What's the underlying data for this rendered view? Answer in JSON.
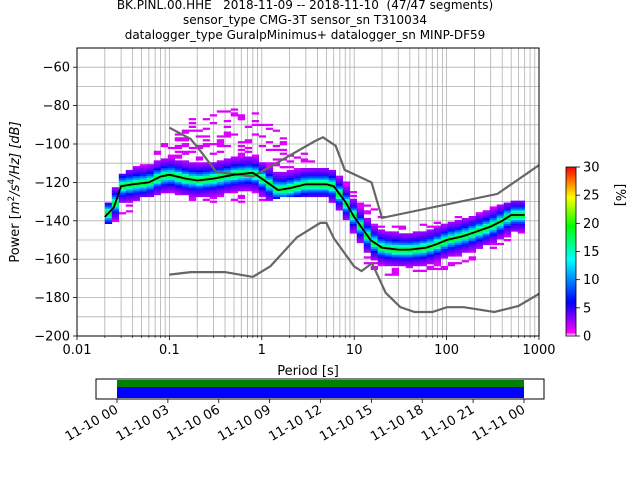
{
  "title": {
    "line1": "BK.PINL.00.HHE   2018-11-09 -- 2018-11-10  (47/47 segments)",
    "line2": "sensor_type CMG-3T sensor_sn T310034",
    "line3": "datalogger_type GuralpMinimus+ datalogger_sn MINP-DF59"
  },
  "chart_data": {
    "type": "heatmap",
    "xlabel": "Period [s]",
    "ylabel": "Power [m²/s⁴/Hz] [dB]",
    "ylabel_prefix": "Power [",
    "ylabel_unit_a": "m",
    "ylabel_sup1": "2",
    "ylabel_unit_b": "/s",
    "ylabel_sup2": "4",
    "ylabel_unit_c": "/Hz] [dB]",
    "x_scale": "log",
    "xlim": [
      0.01,
      1000
    ],
    "x_ticks": [
      {
        "value": 0.01,
        "label": "0.01"
      },
      {
        "value": 0.1,
        "label": "0.1"
      },
      {
        "value": 1,
        "label": "1"
      },
      {
        "value": 10,
        "label": "10"
      },
      {
        "value": 100,
        "label": "100"
      },
      {
        "value": 1000,
        "label": "1000"
      }
    ],
    "ylim": [
      -200,
      -50
    ],
    "y_ticks": [
      {
        "value": -60,
        "label": "−60"
      },
      {
        "value": -80,
        "label": "−80"
      },
      {
        "value": -100,
        "label": "−100"
      },
      {
        "value": -120,
        "label": "−120"
      },
      {
        "value": -140,
        "label": "−140"
      },
      {
        "value": -160,
        "label": "−160"
      },
      {
        "value": -180,
        "label": "−180"
      },
      {
        "value": -200,
        "label": "−200"
      }
    ],
    "grid": true,
    "colorbar": {
      "label": "[%]",
      "range": [
        0,
        30
      ],
      "ticks": [
        {
          "value": 0,
          "label": "0"
        },
        {
          "value": 5,
          "label": "5"
        },
        {
          "value": 10,
          "label": "10"
        },
        {
          "value": 15,
          "label": "15"
        },
        {
          "value": 20,
          "label": "20"
        },
        {
          "value": 25,
          "label": "25"
        },
        {
          "value": 30,
          "label": "30"
        }
      ],
      "colors": [
        "#ffffff",
        "#ff00ff",
        "#0000ff",
        "#00ffff",
        "#00ff00",
        "#ffff00",
        "#ff0000"
      ]
    },
    "nhnm": {
      "x": [
        0.1,
        0.17,
        0.22,
        0.32,
        0.8,
        3.8,
        4.6,
        6.3,
        7.9,
        15.4,
        20,
        354.8,
        1000
      ],
      "y": [
        -91.5,
        -97.4,
        -104,
        -114.5,
        -117,
        -98.4,
        -96.5,
        -101,
        -113.5,
        -120,
        -138.5,
        -126,
        -111
      ]
    },
    "nlnm": {
      "x": [
        0.1,
        0.17,
        0.4,
        0.8,
        1.24,
        2.4,
        4.3,
        5,
        6,
        10,
        12,
        15.6,
        21.9,
        31.6,
        45,
        70,
        101,
        154,
        328,
        600,
        1000
      ],
      "y": [
        -168,
        -166.7,
        -166.7,
        -169.2,
        -163.7,
        -148.6,
        -141.1,
        -141.1,
        -149,
        -163.8,
        -166.2,
        -162.1,
        -177.5,
        -185,
        -187.5,
        -187.5,
        -185,
        -185,
        -187.5,
        -184.4,
        -178
      ]
    },
    "mode": {
      "x": [
        0.02,
        0.025,
        0.03,
        0.04,
        0.06,
        0.08,
        0.1,
        0.15,
        0.2,
        0.3,
        0.5,
        0.8,
        1,
        1.5,
        2,
        3,
        4,
        5,
        6,
        8,
        10,
        15,
        20,
        30,
        40,
        60,
        80,
        100,
        150,
        200,
        300,
        400,
        500,
        700
      ],
      "y": [
        -138,
        -133,
        -122,
        -121,
        -120,
        -117,
        -116,
        -118,
        -119,
        -118,
        -116,
        -115,
        -118,
        -124,
        -123,
        -121,
        -121,
        -121,
        -122,
        -130,
        -138,
        -150,
        -154,
        -155,
        -155,
        -154,
        -152,
        -150,
        -148,
        -146,
        -143,
        -140,
        -137,
        -137
      ]
    },
    "density_shape": {
      "x": [
        0.02,
        0.03,
        0.05,
        0.1,
        0.2,
        0.5,
        1,
        2,
        5,
        8,
        10,
        15,
        20,
        30,
        50,
        100,
        200,
        500,
        700
      ],
      "y_lo": [
        -142,
        -140,
        -128,
        -125,
        -130,
        -132,
        -131,
        -127,
        -127,
        -138,
        -152,
        -165,
        -168,
        -168,
        -168,
        -165,
        -160,
        -150,
        -148
      ],
      "y_hi": [
        -134,
        -116,
        -110,
        -95,
        -85,
        -79,
        -85,
        -100,
        -112,
        -118,
        -125,
        -132,
        -137,
        -142,
        -142,
        -140,
        -135,
        -130,
        -130
      ]
    },
    "time_axis": {
      "label_ticks": [
        "11-10 00",
        "11-10 03",
        "11-10 06",
        "11-10 09",
        "11-10 12",
        "11-10 15",
        "11-10 18",
        "11-10 21",
        "11-11 00"
      ],
      "coverage_colors": [
        "#008000",
        "#0000ff"
      ]
    }
  }
}
